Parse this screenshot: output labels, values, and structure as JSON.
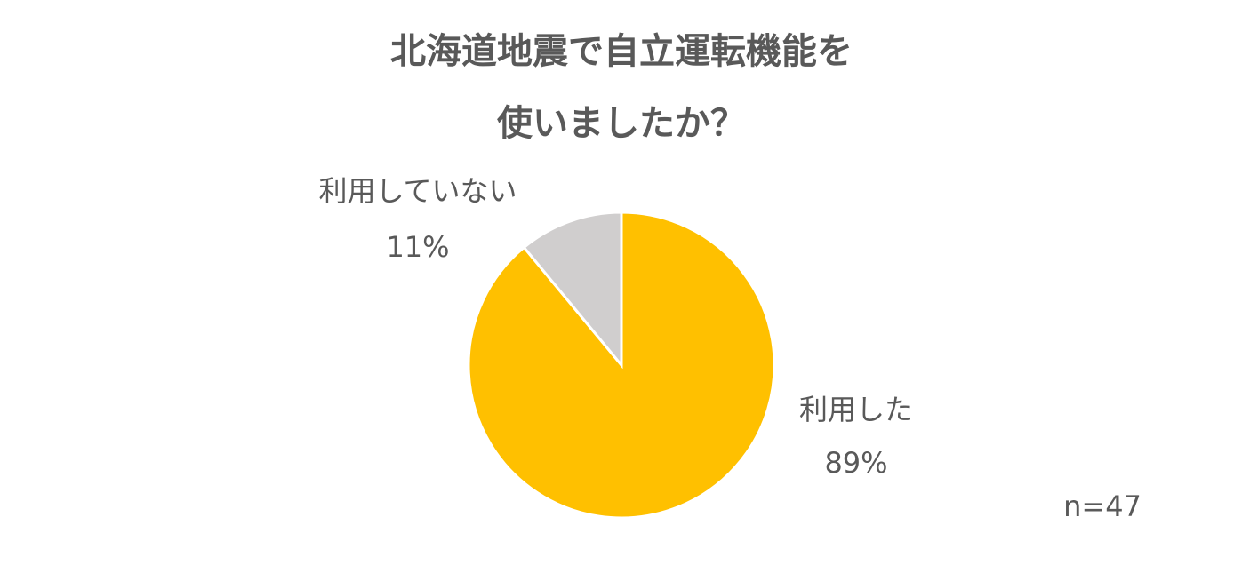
{
  "chart_data": {
    "type": "pie",
    "title": [
      "北海道地震で自立運転機能を",
      "使いましたか？"
    ],
    "categories": [
      "利用した",
      "利用していない"
    ],
    "values": [
      89,
      11
    ],
    "value_labels": [
      "89%",
      "11%"
    ],
    "colors": [
      "#ffc000",
      "#d0cece"
    ],
    "annotation": "n=47"
  }
}
